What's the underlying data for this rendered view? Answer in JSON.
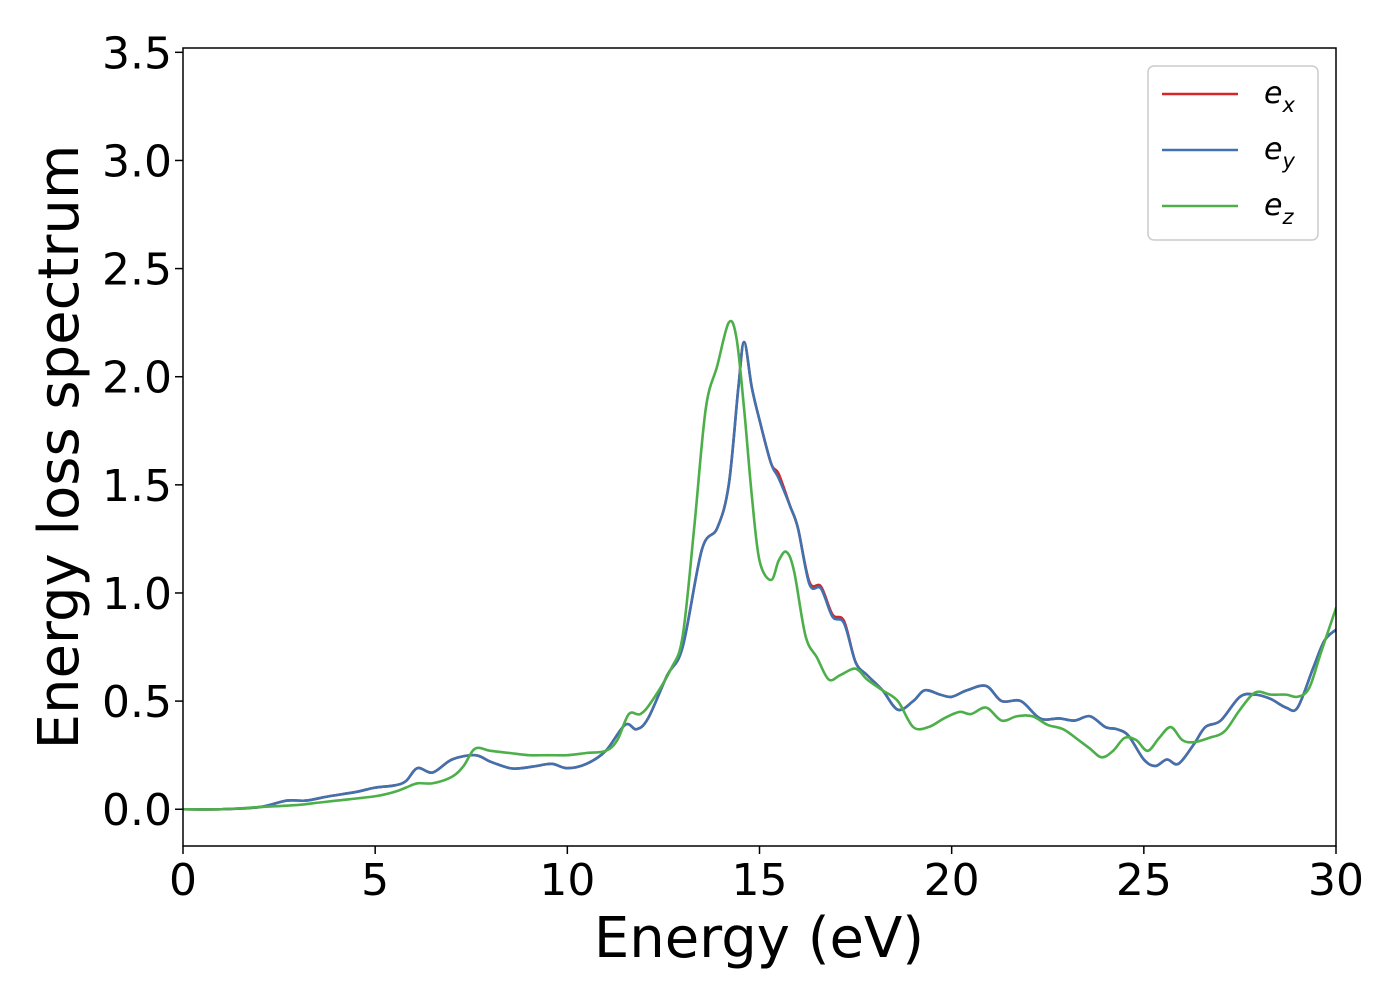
{
  "chart_data": {
    "type": "line",
    "xlabel": "Energy (eV)",
    "ylabel": "Energy loss spectrum",
    "xlim": [
      0,
      30
    ],
    "ylim": [
      -0.17,
      3.52
    ],
    "xticks": [
      0,
      5,
      10,
      15,
      20,
      25,
      30
    ],
    "yticks": [
      0.0,
      0.5,
      1.0,
      1.5,
      2.0,
      2.5,
      3.0,
      3.5
    ],
    "xtick_labels": [
      "0",
      "5",
      "10",
      "15",
      "20",
      "25",
      "30"
    ],
    "ytick_labels": [
      "0.0",
      "0.5",
      "1.0",
      "1.5",
      "2.0",
      "2.5",
      "3.0",
      "3.5"
    ],
    "grid": false,
    "legend_position": "top-right",
    "series": [
      {
        "name": "e_x",
        "label_base": "e",
        "label_sub": "x",
        "color": "#d62728",
        "x": [
          0,
          1,
          2,
          2.7,
          3.2,
          3.8,
          4.5,
          5.0,
          5.5,
          5.8,
          6.1,
          6.5,
          7.0,
          7.6,
          8.0,
          8.5,
          8.8,
          9.2,
          9.6,
          10.0,
          10.5,
          11.0,
          11.5,
          11.8,
          12.1,
          12.6,
          13.0,
          13.5,
          13.9,
          14.2,
          14.45,
          14.6,
          14.8,
          15.0,
          15.3,
          15.5,
          15.8,
          16.0,
          16.3,
          16.6,
          16.9,
          17.2,
          17.5,
          17.8,
          18.2,
          18.6,
          19.0,
          19.3,
          19.7,
          20.0,
          20.4,
          20.9,
          21.3,
          21.8,
          22.3,
          22.8,
          23.2,
          23.6,
          24.0,
          24.3,
          24.6,
          25.0,
          25.3,
          25.6,
          25.9,
          26.3,
          26.6,
          27.0,
          27.5,
          27.9,
          28.3,
          28.7,
          29.0,
          29.4,
          29.7,
          30.0
        ],
        "y": [
          0.0,
          0.0,
          0.01,
          0.04,
          0.04,
          0.06,
          0.08,
          0.1,
          0.11,
          0.13,
          0.19,
          0.17,
          0.23,
          0.25,
          0.22,
          0.19,
          0.19,
          0.2,
          0.21,
          0.19,
          0.21,
          0.27,
          0.39,
          0.37,
          0.42,
          0.62,
          0.75,
          1.2,
          1.3,
          1.5,
          1.95,
          2.16,
          1.95,
          1.8,
          1.6,
          1.55,
          1.4,
          1.3,
          1.05,
          1.03,
          0.9,
          0.87,
          0.68,
          0.62,
          0.55,
          0.46,
          0.5,
          0.55,
          0.53,
          0.52,
          0.55,
          0.57,
          0.5,
          0.5,
          0.42,
          0.42,
          0.41,
          0.43,
          0.38,
          0.37,
          0.34,
          0.23,
          0.2,
          0.23,
          0.21,
          0.3,
          0.38,
          0.41,
          0.52,
          0.53,
          0.51,
          0.47,
          0.47,
          0.65,
          0.78,
          0.83
        ]
      },
      {
        "name": "e_y",
        "label_base": "e",
        "label_sub": "y",
        "color": "#3f72af",
        "x": [
          0,
          1,
          2,
          2.7,
          3.2,
          3.8,
          4.5,
          5.0,
          5.5,
          5.8,
          6.1,
          6.5,
          7.0,
          7.6,
          8.0,
          8.5,
          8.8,
          9.2,
          9.6,
          10.0,
          10.5,
          11.0,
          11.5,
          11.8,
          12.1,
          12.6,
          13.0,
          13.5,
          13.9,
          14.2,
          14.45,
          14.6,
          14.8,
          15.0,
          15.3,
          15.5,
          15.8,
          16.0,
          16.3,
          16.6,
          16.9,
          17.2,
          17.5,
          17.8,
          18.2,
          18.6,
          19.0,
          19.3,
          19.7,
          20.0,
          20.4,
          20.9,
          21.3,
          21.8,
          22.3,
          22.8,
          23.2,
          23.6,
          24.0,
          24.3,
          24.6,
          25.0,
          25.3,
          25.6,
          25.9,
          26.3,
          26.6,
          27.0,
          27.5,
          27.9,
          28.3,
          28.7,
          29.0,
          29.4,
          29.7,
          30.0
        ],
        "y": [
          0.0,
          0.0,
          0.01,
          0.04,
          0.04,
          0.06,
          0.08,
          0.1,
          0.11,
          0.13,
          0.19,
          0.17,
          0.23,
          0.25,
          0.22,
          0.19,
          0.19,
          0.2,
          0.21,
          0.19,
          0.21,
          0.27,
          0.39,
          0.37,
          0.42,
          0.62,
          0.75,
          1.2,
          1.3,
          1.5,
          1.95,
          2.16,
          1.95,
          1.8,
          1.6,
          1.53,
          1.4,
          1.3,
          1.04,
          1.02,
          0.89,
          0.86,
          0.68,
          0.62,
          0.55,
          0.46,
          0.5,
          0.55,
          0.53,
          0.52,
          0.55,
          0.57,
          0.5,
          0.5,
          0.42,
          0.42,
          0.41,
          0.43,
          0.38,
          0.37,
          0.34,
          0.23,
          0.2,
          0.23,
          0.21,
          0.3,
          0.38,
          0.41,
          0.52,
          0.53,
          0.51,
          0.47,
          0.47,
          0.65,
          0.78,
          0.83
        ]
      },
      {
        "name": "e_z",
        "label_base": "e",
        "label_sub": "z",
        "color": "#4daf4a",
        "x": [
          0,
          1,
          2,
          3.0,
          3.5,
          4.0,
          5.0,
          5.5,
          5.8,
          6.1,
          6.5,
          7.0,
          7.3,
          7.6,
          8.0,
          8.5,
          9.0,
          9.5,
          10.0,
          10.5,
          11.0,
          11.3,
          11.6,
          11.9,
          12.2,
          12.7,
          13.0,
          13.3,
          13.6,
          13.9,
          14.2,
          14.4,
          14.6,
          14.8,
          15.0,
          15.3,
          15.5,
          15.7,
          15.9,
          16.2,
          16.5,
          16.8,
          17.1,
          17.5,
          17.8,
          18.2,
          18.6,
          19.0,
          19.4,
          19.8,
          20.2,
          20.5,
          20.9,
          21.3,
          21.7,
          22.1,
          22.5,
          22.9,
          23.3,
          23.6,
          23.9,
          24.2,
          24.5,
          24.8,
          25.1,
          25.4,
          25.7,
          26.0,
          26.3,
          26.7,
          27.1,
          27.5,
          27.9,
          28.3,
          28.7,
          29.0,
          29.3,
          29.6,
          30.0
        ],
        "y": [
          0.0,
          0.0,
          0.01,
          0.02,
          0.03,
          0.04,
          0.06,
          0.08,
          0.1,
          0.12,
          0.12,
          0.15,
          0.2,
          0.28,
          0.27,
          0.26,
          0.25,
          0.25,
          0.25,
          0.26,
          0.27,
          0.32,
          0.44,
          0.44,
          0.5,
          0.65,
          0.8,
          1.3,
          1.85,
          2.05,
          2.25,
          2.18,
          1.85,
          1.45,
          1.15,
          1.06,
          1.15,
          1.19,
          1.1,
          0.8,
          0.7,
          0.6,
          0.62,
          0.65,
          0.6,
          0.55,
          0.5,
          0.38,
          0.38,
          0.42,
          0.45,
          0.44,
          0.47,
          0.41,
          0.43,
          0.43,
          0.39,
          0.37,
          0.32,
          0.28,
          0.24,
          0.27,
          0.33,
          0.32,
          0.27,
          0.33,
          0.38,
          0.32,
          0.31,
          0.33,
          0.36,
          0.46,
          0.54,
          0.53,
          0.53,
          0.52,
          0.56,
          0.72,
          0.93
        ]
      }
    ]
  }
}
